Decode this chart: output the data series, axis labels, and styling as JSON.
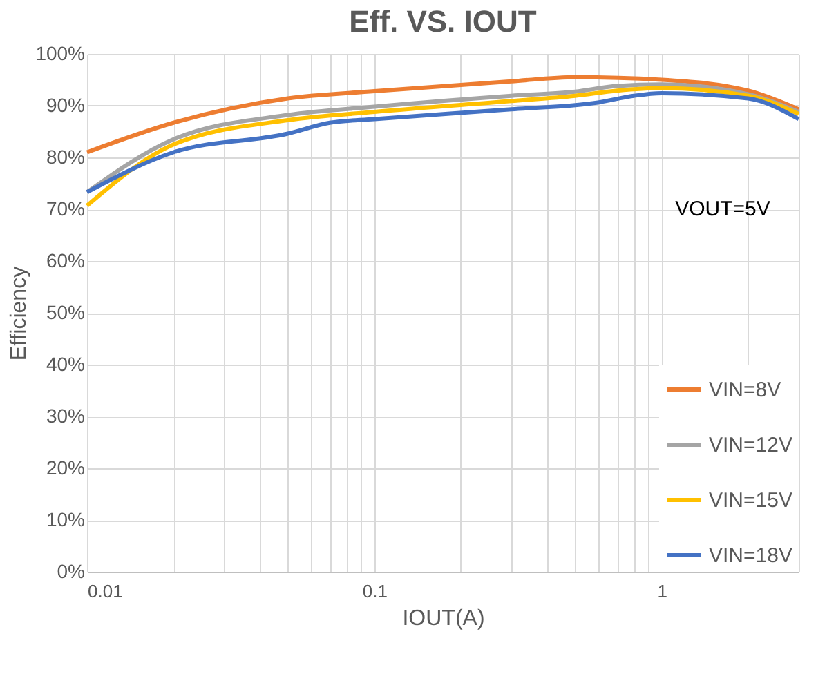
{
  "chart_data": {
    "type": "line",
    "title": "Eff. VS. IOUT",
    "xlabel": "IOUT(A)",
    "ylabel": "Efficiency",
    "log": "x",
    "grid": true,
    "legend": "bottom right",
    "marker": "none",
    "line_style": "solid",
    "xlim": [
      0.01,
      3
    ],
    "ylim": [
      0,
      100
    ],
    "xticks": [
      0.01,
      {
        "value": 0.02,
        "label": null
      },
      {
        "value": 0.03,
        "label": null
      },
      {
        "value": 0.04,
        "label": null
      },
      {
        "value": 0.05,
        "label": null
      },
      {
        "value": 0.06,
        "label": null
      },
      {
        "value": 0.07,
        "label": null
      },
      {
        "value": 0.08,
        "label": null
      },
      {
        "value": 0.09,
        "label": null
      },
      0.1,
      {
        "value": 0.2,
        "label": null
      },
      {
        "value": 0.3,
        "label": null
      },
      {
        "value": 0.4,
        "label": null
      },
      {
        "value": 0.5,
        "label": null
      },
      {
        "value": 0.6,
        "label": null
      },
      {
        "value": 0.7,
        "label": null
      },
      {
        "value": 0.8,
        "label": null
      },
      {
        "value": 0.9,
        "label": null
      },
      1,
      {
        "value": 2,
        "label": null
      },
      {
        "value": 3,
        "label": null
      }
    ],
    "yticks": [
      {
        "value": 0,
        "label": "0%"
      },
      {
        "value": 10,
        "label": "10%"
      },
      {
        "value": 20,
        "label": "20%"
      },
      {
        "value": 30,
        "label": "30%"
      },
      {
        "value": 40,
        "label": "40%"
      },
      {
        "value": 50,
        "label": "50%"
      },
      {
        "value": 60,
        "label": "60%"
      },
      {
        "value": 70,
        "label": "70%"
      },
      {
        "value": 80,
        "label": "80%"
      },
      {
        "value": 90,
        "label": "90%"
      },
      {
        "value": 100,
        "label": "100%"
      }
    ],
    "annotations": [
      "VOUT=5V"
    ],
    "series": [
      {
        "name": "VIN=8V",
        "color": "#ed7d31",
        "x": [
          0.01,
          0.02,
          0.05,
          0.1,
          0.3,
          0.5,
          1,
          2,
          3
        ],
        "values": [
          81,
          86.7,
          91.4,
          92.8,
          94.7,
          95.5,
          95,
          92.9,
          89.3
        ]
      },
      {
        "name": "VIN=12V",
        "color": "#a5a5a5",
        "x": [
          0.01,
          0.02,
          0.05,
          0.1,
          0.3,
          0.5,
          0.7,
          1,
          2,
          3
        ],
        "values": [
          73.3,
          83.5,
          88.2,
          89.8,
          91.9,
          92.7,
          93.8,
          94.1,
          92.2,
          88.8
        ]
      },
      {
        "name": "VIN=15V",
        "color": "#ffc000",
        "x": [
          0.01,
          0.02,
          0.05,
          0.1,
          0.3,
          0.5,
          0.7,
          1,
          2,
          3
        ],
        "values": [
          70.7,
          82.5,
          87.2,
          88.8,
          90.9,
          91.9,
          92.9,
          93.4,
          91.9,
          88.4
        ]
      },
      {
        "name": "VIN=18V",
        "color": "#4472c4",
        "x": [
          0.01,
          0.02,
          0.05,
          0.07,
          0.1,
          0.3,
          0.6,
          0.8,
          1,
          2,
          3
        ],
        "values": [
          73.3,
          81,
          84.6,
          86.7,
          87.4,
          89.3,
          90.6,
          91.9,
          92.4,
          91.4,
          87.4
        ]
      }
    ]
  }
}
